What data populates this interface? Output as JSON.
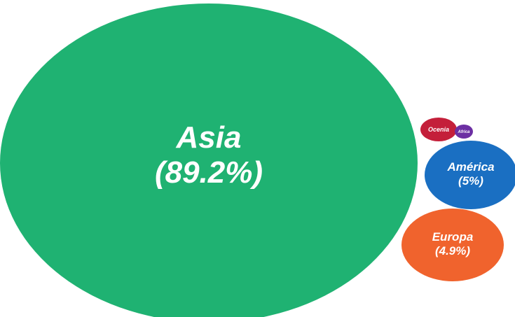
{
  "chart_data": {
    "type": "bubble",
    "bubbles": [
      {
        "name": "Asia",
        "value": 89.2,
        "label_line1": "Asia",
        "label_line2": "(89.2%)",
        "color": "#1fb272"
      },
      {
        "name": "América",
        "value": 5,
        "label_line1": "América",
        "label_line2": "(5%)",
        "color": "#1a6fc2"
      },
      {
        "name": "Europa",
        "value": 4.9,
        "label_line1": "Europa",
        "label_line2": "(4.9%)",
        "color": "#f0632d"
      },
      {
        "name": "Ocenia",
        "value": null,
        "label_line1": "Ocenia",
        "label_line2": "",
        "color": "#c41f3a"
      },
      {
        "name": "Africa",
        "value": null,
        "label_line1": "Africa",
        "label_line2": "",
        "color": "#6c2fa3"
      }
    ]
  }
}
